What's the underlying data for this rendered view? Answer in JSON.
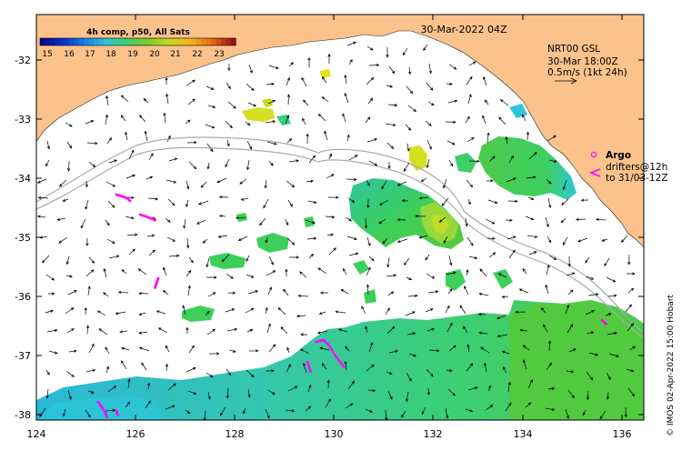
{
  "header": {
    "title": "30-Mar-2022 04Z",
    "colorbar_title": "4h comp, p50, All Sats"
  },
  "colorbar": {
    "ticks": [
      "15",
      "16",
      "17",
      "18",
      "19",
      "20",
      "21",
      "22",
      "23"
    ],
    "colors": [
      "#08088f",
      "#0a2fd0",
      "#1a7ee6",
      "#2ec6d8",
      "#3fcf6a",
      "#7ccc2a",
      "#c8d61e",
      "#f2b31a",
      "#e86a14",
      "#a01010"
    ]
  },
  "legend": {
    "current_title": "NRT00 GSL",
    "current_time": "30-Mar 18:00Z",
    "current_scale": "0.5m/s (1kt 24h)",
    "argo_label": "Argo",
    "drifter_line1": "drifters@12h",
    "drifter_line2": "to 31/03-12Z"
  },
  "axes": {
    "x_ticks": [
      "124",
      "126",
      "128",
      "130",
      "132",
      "134",
      "136"
    ],
    "y_ticks": [
      "-32",
      "-33",
      "-34",
      "-35",
      "-36",
      "-37",
      "-38"
    ]
  },
  "credit": "© IMOS 02-Apr-2022 15:00 Hobart",
  "colors": {
    "land": "#fbc28c",
    "drifter": "#ff00ff",
    "contour": "#aaaaaa"
  }
}
